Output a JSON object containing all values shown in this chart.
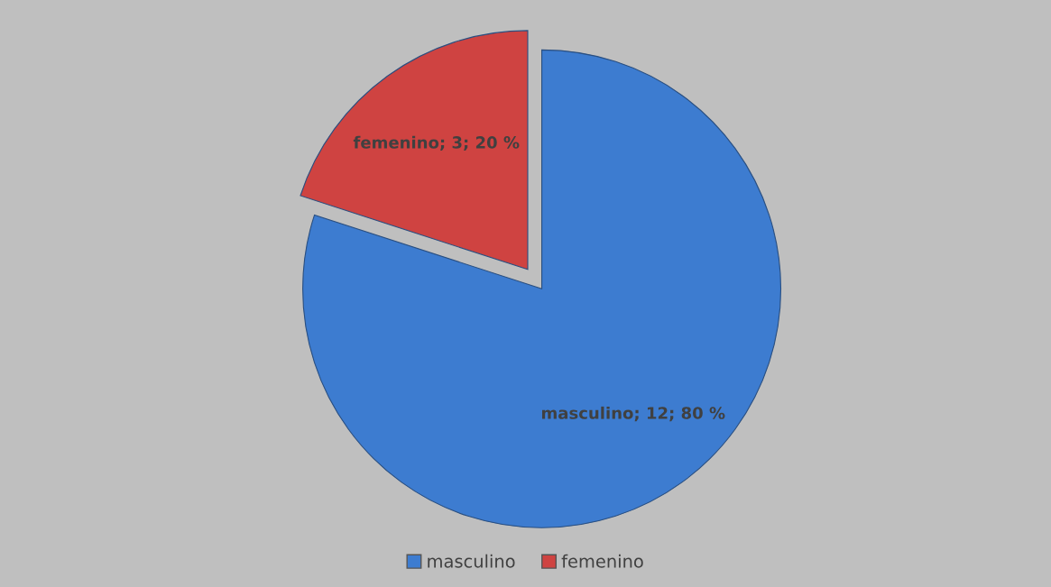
{
  "chart_data": {
    "type": "pie",
    "categories": [
      "masculino",
      "femenino"
    ],
    "values": [
      12,
      3
    ],
    "colors": [
      "#3d7cd0",
      "#cf4341"
    ],
    "value_labels": [
      "masculino; 12; 80 %",
      "femenino; 3; 20 %"
    ],
    "legend": "bottom"
  }
}
